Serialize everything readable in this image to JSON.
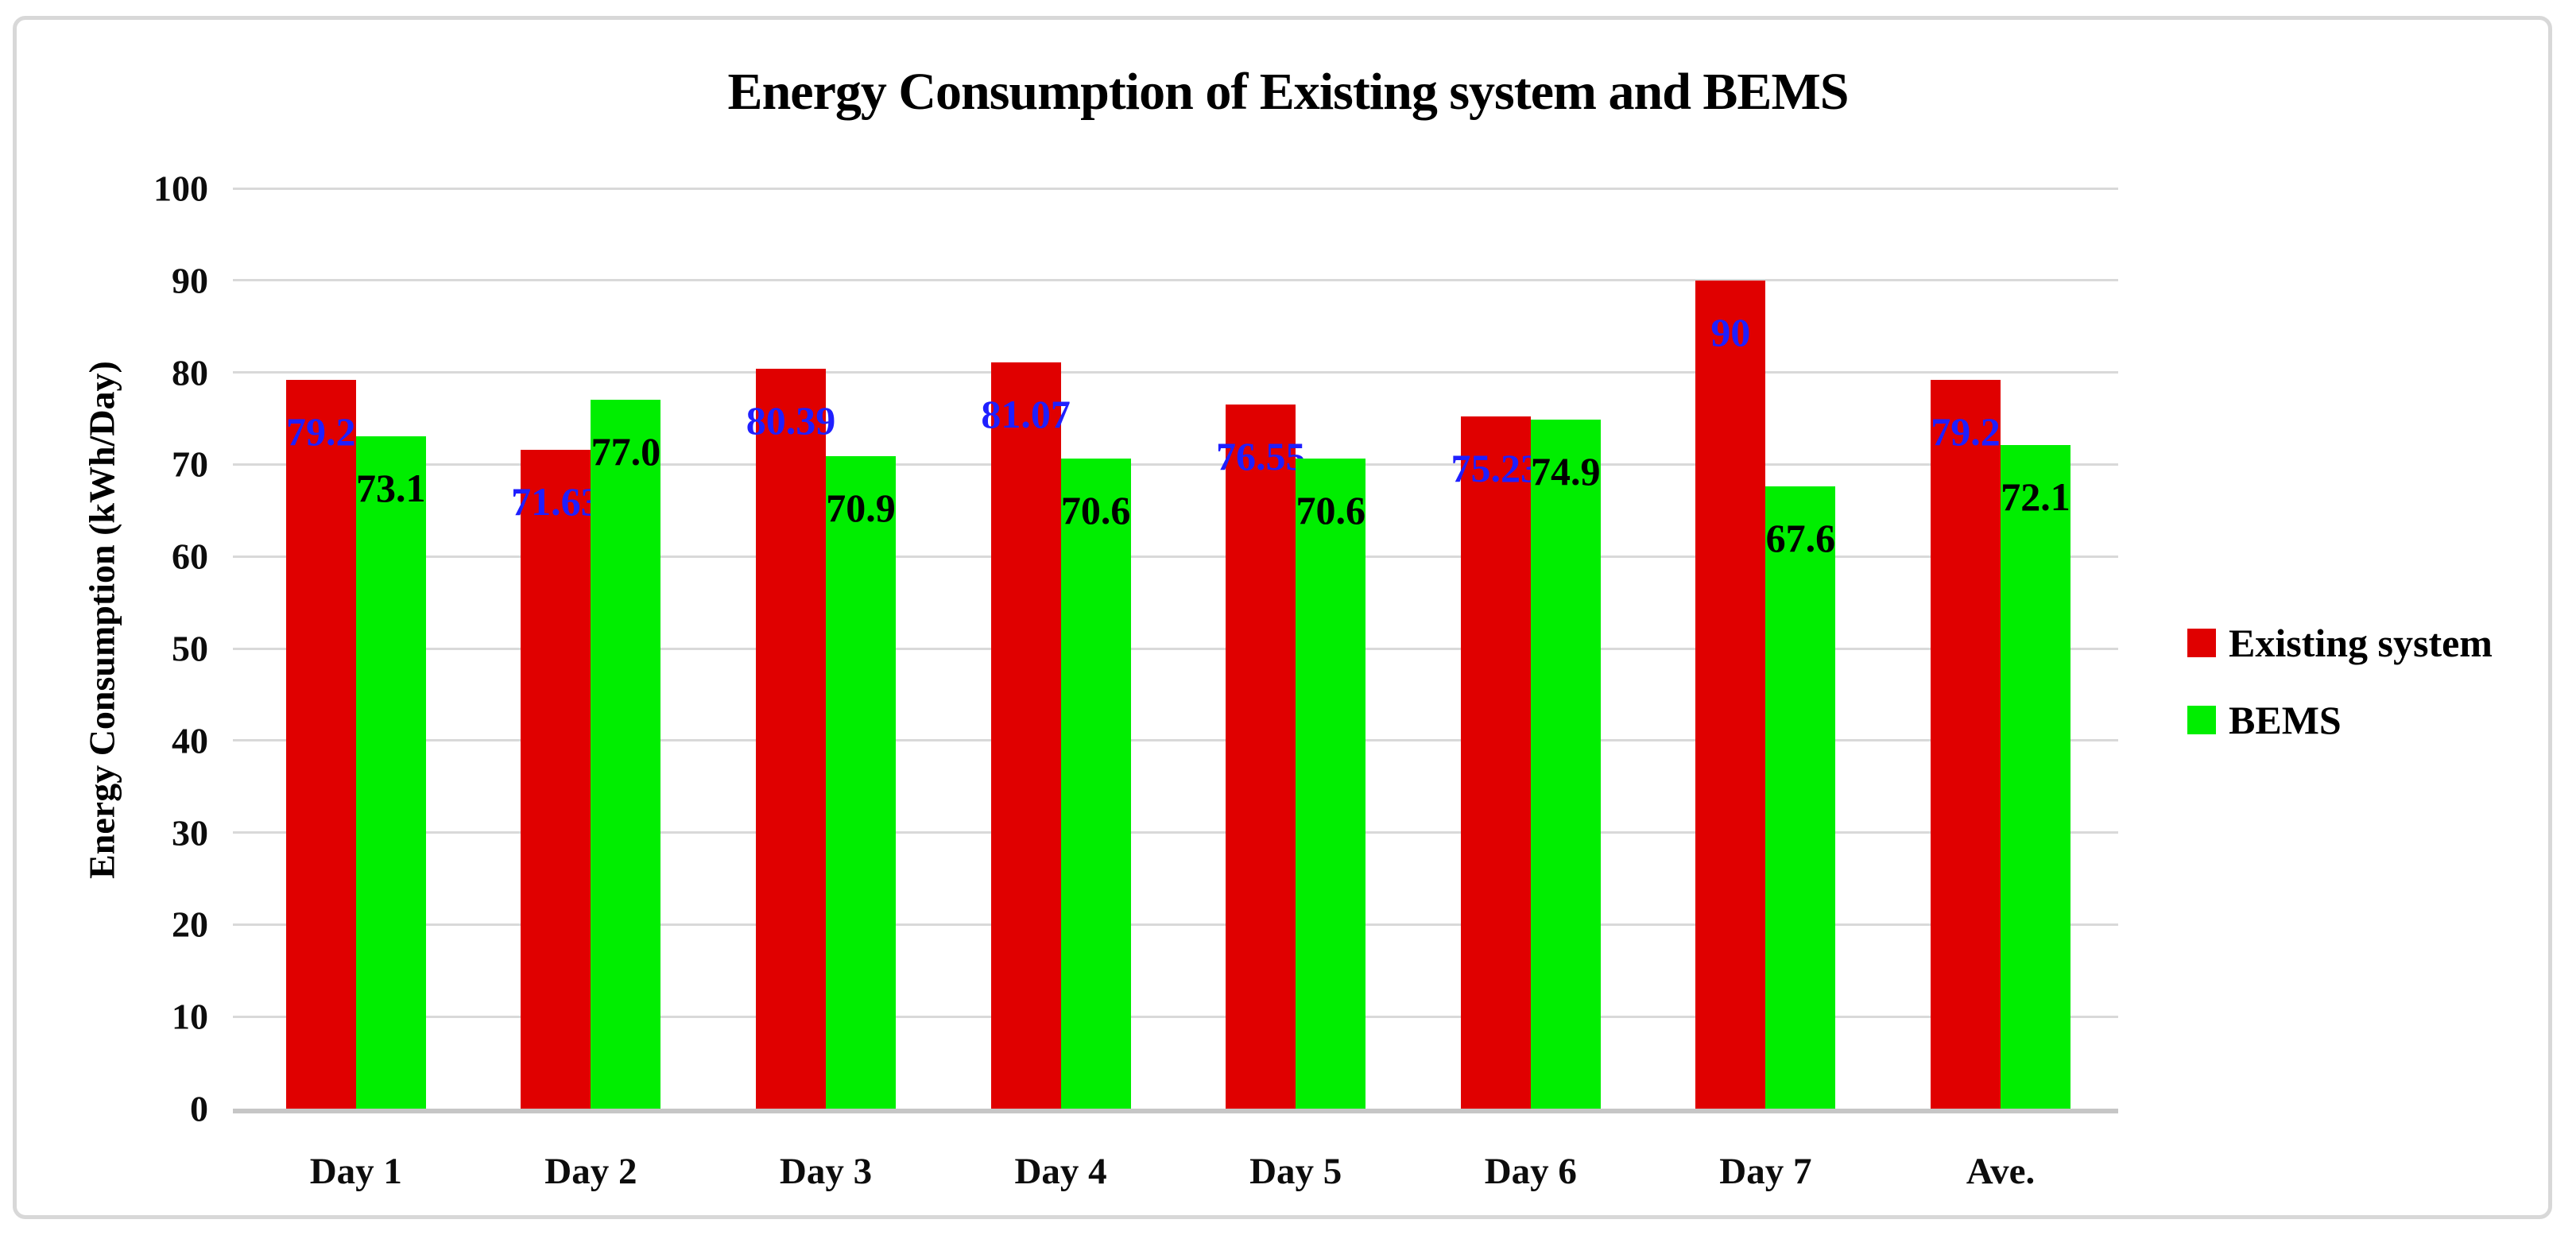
{
  "title": "Energy Consumption of Existing system and BEMS",
  "chart_data": {
    "type": "bar",
    "categories": [
      "Day 1",
      "Day 2",
      "Day 3",
      "Day 4",
      "Day 5",
      "Day 6",
      "Day 7",
      "Ave."
    ],
    "series": [
      {
        "name": "Existing system",
        "color": "#e00000",
        "label_color": "#1f1fff",
        "values": [
          79.2,
          71.63,
          80.39,
          81.07,
          76.55,
          75.23,
          90,
          79.2
        ],
        "labels": [
          "79.2",
          "71.63",
          "80.39",
          "81.07",
          "76.55",
          "75.23",
          "90",
          "79.2"
        ]
      },
      {
        "name": "BEMS",
        "color": "#00ee00",
        "label_color": "#000000",
        "values": [
          73.1,
          77.0,
          70.9,
          70.6,
          70.6,
          74.9,
          67.6,
          72.1
        ],
        "labels": [
          "73.1",
          "77.0",
          "70.9",
          "70.6",
          "70.6",
          "74.9",
          "67.6",
          "72.1"
        ]
      }
    ],
    "xlabel": "",
    "ylabel": "Energy Consumption (kWh/Day)",
    "ylim": [
      0,
      100
    ],
    "ytick_step": 10,
    "yticks": [
      "0",
      "10",
      "20",
      "30",
      "40",
      "50",
      "60",
      "70",
      "80",
      "90",
      "100"
    ],
    "grid": true,
    "legend_position": "middle-right",
    "data_labels_position": "inside-end"
  },
  "colors": {
    "existing_system_bar": "#e00000",
    "bems_bar": "#00ee00",
    "existing_system_label": "#1f1fff",
    "bems_label": "#000000",
    "gridline": "#d9d9d9",
    "axis_line": "#c6c6c6",
    "frame_border": "#d8d8d8",
    "text": "#000000"
  }
}
